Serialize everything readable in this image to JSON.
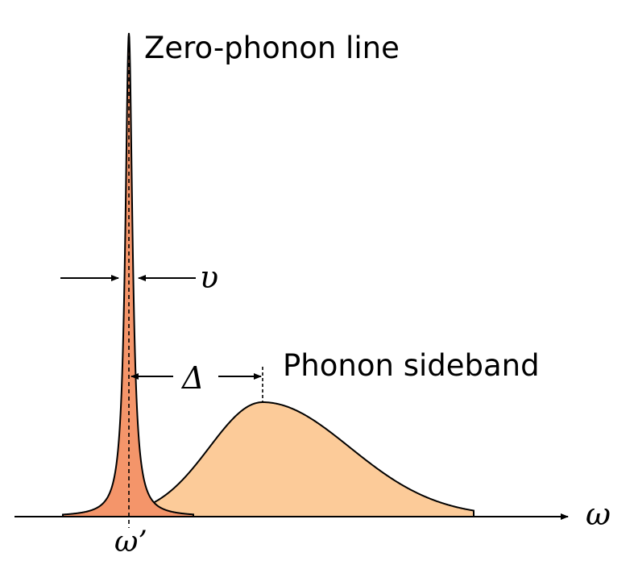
{
  "labels": {
    "zero_phonon": "Zero-phonon line",
    "phonon_sideband": "Phonon sideband",
    "width": "υ",
    "shift": "Δ",
    "axis": "ω",
    "center": "ω’"
  },
  "colors": {
    "zero_phonon_fill": "#F4956A",
    "sideband_fill": "#FCCB99",
    "stroke": "#000000",
    "background": "#ffffff"
  }
}
